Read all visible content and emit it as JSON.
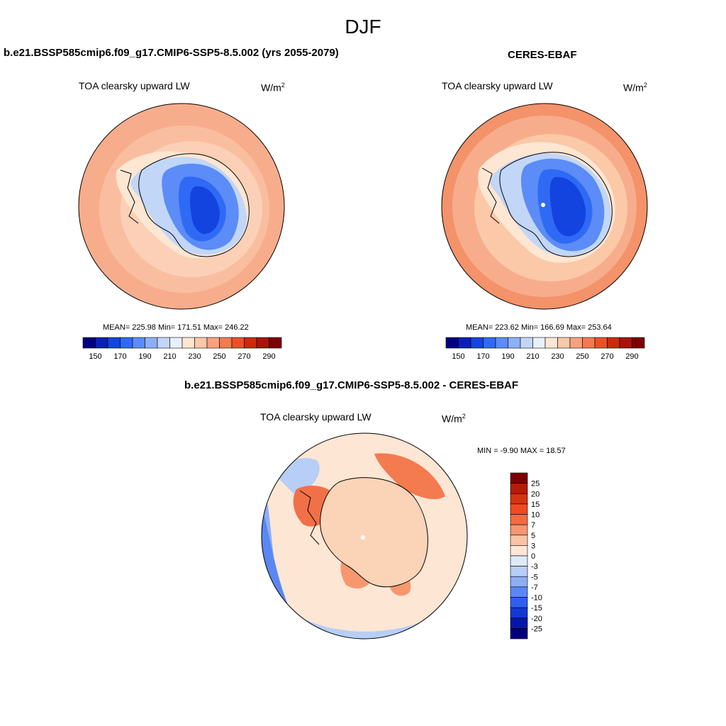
{
  "title": "DJF",
  "panels": [
    {
      "title": "b.e21.BSSP585cmip6.f09_g17.CMIP6-SSP5-8.5.002 (yrs 2055-2079)",
      "variable": "TOA clearsky upward LW",
      "units_base": "W/m",
      "units_exp": "2",
      "stats": "MEAN= 225.98  Min= 171.51  Max= 246.22",
      "mean": 225.98,
      "min": 171.51,
      "max": 246.22
    },
    {
      "title": "CERES-EBAF",
      "variable": "TOA clearsky upward LW",
      "units_base": "W/m",
      "units_exp": "2",
      "stats": "MEAN= 223.62  Min= 166.69  Max= 253.64",
      "mean": 223.62,
      "min": 166.69,
      "max": 253.64
    },
    {
      "title": "b.e21.BSSP585cmip6.f09_g17.CMIP6-SSP5-8.5.002 - CERES-EBAF",
      "variable": "TOA clearsky upward LW",
      "units_base": "W/m",
      "units_exp": "2",
      "stats": "MIN =  -9.90 MAX =  18.57",
      "min": -9.9,
      "max": 18.57
    }
  ],
  "colorbar_abs": {
    "colors": [
      "#00007f",
      "#0a1fb8",
      "#1444e0",
      "#2f6af5",
      "#5b8cf7",
      "#8cb0f8",
      "#c2d6f7",
      "#e8f0fb",
      "#fde6d2",
      "#fbc8a8",
      "#f8a27c",
      "#f47a50",
      "#ec4f26",
      "#cc2a0c",
      "#a8140a",
      "#7f0000"
    ],
    "tick_labels": [
      "150",
      "170",
      "190",
      "210",
      "230",
      "250",
      "270",
      "290"
    ]
  },
  "colorbar_diff": {
    "colors": [
      "#7f0000",
      "#b21d06",
      "#d43410",
      "#f04a20",
      "#f46c3e",
      "#f79770",
      "#fbc3a4",
      "#fde6d4",
      "#ddeaf8",
      "#b7cef6",
      "#8eaef4",
      "#5a87f2",
      "#2e5ff0",
      "#1438d4",
      "#0617a8",
      "#00007f"
    ],
    "tick_labels": [
      "25",
      "20",
      "15",
      "10",
      "7",
      "5",
      "3",
      "0",
      "-3",
      "-5",
      "-7",
      "-10",
      "-15",
      "-20",
      "-25"
    ]
  },
  "map_colors": {
    "ocean_warm": "#f8b394",
    "ocean_mid": "#fbd0b6",
    "ice_cold": "#1f56f2",
    "ice_mid": "#5b8cf7",
    "ice_light": "#c2d6f7",
    "diff_pos": "#f4845c",
    "diff_bg": "#fde6d4",
    "diff_neg": "#b7cef6",
    "diff_neg_strong": "#6b96f2"
  }
}
